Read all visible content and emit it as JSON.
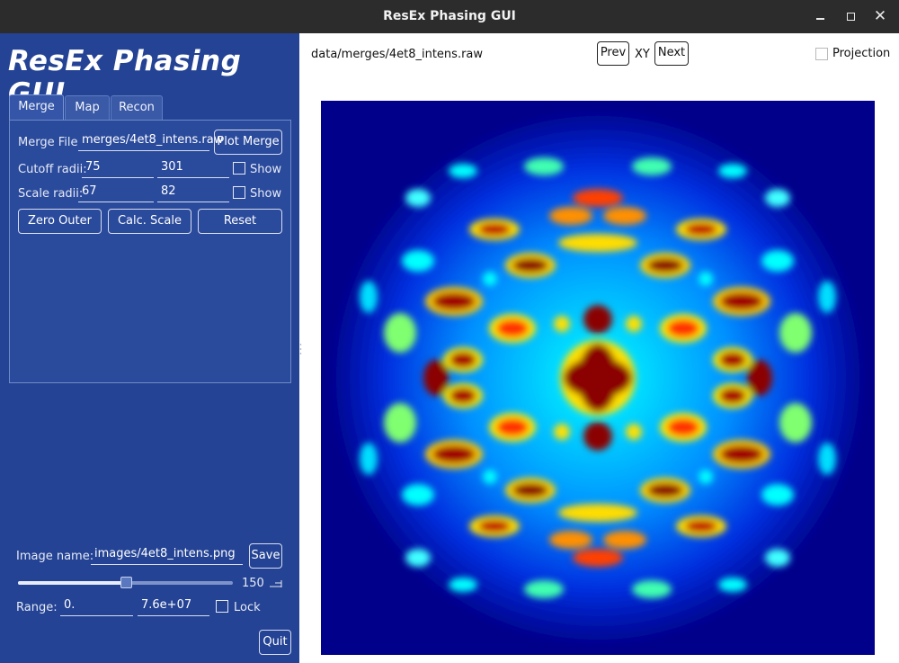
{
  "window": {
    "title": "ResEx Phasing GUI",
    "minimize": "–",
    "maximize": "□",
    "close": "✕"
  },
  "sidebar": {
    "logo": "ResEx Phasing GUI",
    "tabs": [
      {
        "label": "Merge",
        "active": true
      },
      {
        "label": "Map",
        "active": false
      },
      {
        "label": "Recon",
        "active": false
      }
    ],
    "merge": {
      "merge_file_label": "Merge File",
      "merge_file_value": "merges/4et8_intens.raw",
      "plot_merge_label": "Plot Merge",
      "cutoff_label": "Cutoff radii:",
      "cutoff_min": "75",
      "cutoff_max": "301",
      "cutoff_show_label": "Show",
      "cutoff_show_checked": false,
      "scale_label": "Scale radii:",
      "scale_min": "67",
      "scale_max": "82",
      "scale_show_label": "Show",
      "scale_show_checked": false,
      "zero_outer_label": "Zero Outer",
      "calc_scale_label": "Calc. Scale",
      "reset_label": "Reset"
    },
    "image_name_label": "Image name:",
    "image_name_value": "images/4et8_intens.png",
    "save_label": "Save",
    "slider_value": "150",
    "slider_fraction": 0.5,
    "range_label": "Range:",
    "range_min": "0.",
    "range_max": "7.6e+07",
    "lock_label": "Lock",
    "lock_checked": false,
    "quit_label": "Quit"
  },
  "viewer": {
    "file_path": "data/merges/4et8_intens.raw",
    "prev_label": "Prev",
    "view_label": "XY",
    "next_label": "Next",
    "projection_label": "Projection",
    "projection_checked": false,
    "colormap": "jet"
  },
  "colors": {
    "sidebar_bg": "#244394",
    "titlebar_bg": "#2c2c2c",
    "map_background": "#00008a"
  }
}
